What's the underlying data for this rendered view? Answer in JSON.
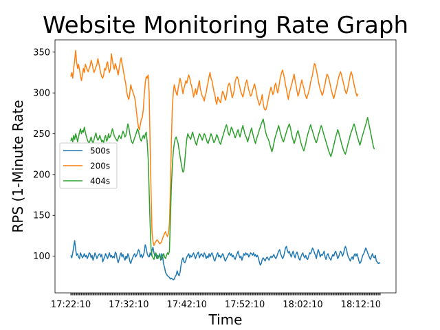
{
  "chart_data": {
    "type": "line",
    "title": "Website Monitoring Rate Graph",
    "xlabel": "Time",
    "ylabel": "RPS (1-Minute Rate",
    "x_start": "17:22:10",
    "x_step_seconds": 10,
    "x_tick_labels": [
      "17:22:10",
      "17:32:10",
      "17:42:10",
      "17:52:10",
      "18:02:10",
      "18:12:10"
    ],
    "y_ticks": [
      100,
      150,
      200,
      250,
      300,
      350
    ],
    "ylim": [
      55,
      365
    ],
    "legend_position": "center-left",
    "series": [
      {
        "name": "500s",
        "color": "#1f77b4",
        "values": [
          101,
          98,
          104,
          112,
          119,
          108,
          101,
          103,
          99,
          97,
          104,
          101,
          98,
          100,
          103,
          99,
          101,
          97,
          100,
          104,
          103,
          98,
          101,
          95,
          99,
          104,
          101,
          97,
          100,
          102,
          103,
          99,
          102,
          93,
          96,
          99,
          103,
          100,
          97,
          101,
          104,
          99,
          101,
          98,
          100,
          98,
          105,
          103,
          96,
          92,
          96,
          101,
          104,
          99,
          102,
          98,
          95,
          100,
          97,
          103,
          100,
          94,
          91,
          95,
          98,
          101,
          103,
          99,
          101,
          104,
          108,
          106,
          99,
          102,
          98,
          101,
          105,
          114,
          110,
          103,
          100,
          99,
          104,
          101,
          107,
          111,
          104,
          100,
          102,
          97,
          101,
          99,
          103,
          95,
          103,
          100,
          90,
          86,
          80,
          78,
          76,
          75,
          74,
          72,
          73,
          72,
          71,
          72,
          75,
          77,
          82,
          78,
          76,
          80,
          89,
          95,
          98,
          93,
          92,
          95,
          99,
          101,
          103,
          98,
          101,
          99,
          102,
          104,
          100,
          97,
          101,
          103,
          105,
          98,
          101,
          103,
          101,
          99,
          104,
          102,
          97,
          100,
          98,
          103,
          99,
          102,
          104,
          101,
          96,
          94,
          98,
          102,
          104,
          99,
          101,
          98,
          100,
          103,
          101,
          96,
          94,
          97,
          99,
          102,
          104,
          101,
          103,
          99,
          101,
          98,
          96,
          100,
          103,
          106,
          101,
          98,
          100,
          95,
          99,
          103,
          101,
          104,
          102,
          103,
          99,
          101,
          104,
          103,
          101,
          104,
          100,
          102,
          99,
          101,
          98,
          93,
          89,
          91,
          96,
          98,
          96,
          94,
          97,
          99,
          97,
          95,
          98,
          100,
          98,
          100,
          102,
          99,
          97,
          99,
          103,
          106,
          108,
          103,
          100,
          97,
          99,
          104,
          110,
          112,
          107,
          104,
          106,
          102,
          99,
          103,
          106,
          101,
          98,
          103,
          105,
          101,
          97,
          95,
          99,
          102,
          104,
          100,
          98,
          101,
          97,
          96,
          100,
          104,
          103,
          106,
          110,
          108,
          104,
          101,
          97,
          104,
          108,
          104,
          99,
          102,
          101,
          103,
          106,
          99,
          96,
          101,
          103,
          99,
          97,
          95,
          99,
          102,
          100,
          104,
          106,
          102,
          97,
          99,
          103,
          106,
          104,
          100,
          103,
          108,
          112,
          109,
          103,
          99,
          97,
          94,
          97,
          99,
          96,
          101,
          103,
          100,
          103,
          99,
          94,
          91,
          93,
          97,
          101,
          103,
          106,
          110,
          108,
          104,
          101,
          98,
          96,
          100,
          103,
          99,
          98,
          101,
          94,
          93,
          91,
          92,
          91
        ]
      },
      {
        "name": "200s",
        "color": "#ff7f0e",
        "values": [
          320,
          325,
          318,
          330,
          340,
          352,
          338,
          330,
          335,
          328,
          321,
          315,
          322,
          330,
          325,
          335,
          332,
          328,
          326,
          330,
          333,
          340,
          336,
          330,
          325,
          328,
          332,
          335,
          342,
          336,
          330,
          324,
          320,
          318,
          322,
          330,
          328,
          335,
          338,
          330,
          325,
          330,
          348,
          340,
          333,
          329,
          336,
          332,
          327,
          322,
          330,
          338,
          343,
          336,
          330,
          323,
          316,
          310,
          300,
          295,
          292,
          300,
          310,
          305,
          302,
          298,
          295,
          287,
          276,
          266,
          258,
          255,
          262,
          268,
          270,
          280,
          298,
          312,
          320,
          318,
          322,
          300,
          240,
          180,
          130,
          118,
          113,
          116,
          118,
          120,
          119,
          117,
          115,
          116,
          118,
          122,
          125,
          128,
          130,
          126,
          124,
          128,
          140,
          180,
          240,
          282,
          300,
          310,
          305,
          300,
          297,
          305,
          312,
          318,
          313,
          306,
          299,
          305,
          310,
          315,
          312,
          318,
          322,
          318,
          312,
          308,
          302,
          295,
          300,
          305,
          298,
          302,
          310,
          315,
          305,
          300,
          296,
          294,
          290,
          297,
          300,
          308,
          313,
          320,
          325,
          318,
          315,
          308,
          302,
          298,
          290,
          286,
          295,
          292,
          290,
          288,
          296,
          302,
          300,
          295,
          291,
          296,
          305,
          310,
          312,
          308,
          300,
          294,
          298,
          303,
          314,
          318,
          320,
          317,
          311,
          306,
          301,
          298,
          295,
          300,
          307,
          312,
          316,
          310,
          304,
          300,
          296,
          298,
          303,
          307,
          311,
          306,
          300,
          293,
          290,
          285,
          288,
          292,
          298,
          287,
          281,
          279,
          280,
          285,
          291,
          297,
          302,
          307,
          303,
          298,
          301,
          309,
          312,
          305,
          300,
          306,
          314,
          320,
          325,
          328,
          323,
          318,
          310,
          305,
          298,
          292,
          300,
          304,
          309,
          313,
          318,
          323,
          315,
          309,
          302,
          296,
          300,
          306,
          311,
          316,
          310,
          306,
          300,
          296,
          293,
          297,
          301,
          306,
          313,
          318,
          322,
          330,
          336,
          334,
          328,
          322,
          315,
          309,
          304,
          301,
          297,
          300,
          306,
          311,
          318,
          323,
          321,
          317,
          312,
          306,
          301,
          297,
          293,
          298,
          303,
          308,
          314,
          319,
          323,
          326,
          322,
          317,
          312,
          307,
          302,
          299,
          303,
          309,
          315,
          322,
          326,
          322,
          316,
          310,
          305,
          300,
          296,
          299
        ]
      },
      {
        "name": "404s",
        "color": "#2ca02c",
        "values": [
          241,
          245,
          240,
          248,
          243,
          250,
          246,
          240,
          246,
          252,
          256,
          250,
          254,
          252,
          258,
          252,
          247,
          243,
          240,
          238,
          242,
          246,
          241,
          238,
          243,
          247,
          251,
          245,
          242,
          244,
          248,
          244,
          240,
          242,
          239,
          245,
          248,
          241,
          243,
          250,
          245,
          247,
          251,
          256,
          252,
          247,
          245,
          243,
          241,
          244,
          248,
          246,
          244,
          249,
          253,
          250,
          246,
          248,
          255,
          262,
          258,
          250,
          244,
          240,
          238,
          241,
          245,
          248,
          252,
          256,
          253,
          247,
          243,
          241,
          245,
          248,
          244,
          249,
          252,
          240,
          220,
          180,
          140,
          110,
          100,
          98,
          96,
          101,
          104,
          100,
          97,
          99,
          102,
          98,
          96,
          100,
          103,
          99,
          97,
          101,
          104,
          102,
          106,
          145,
          185,
          210,
          228,
          238,
          244,
          246,
          242,
          238,
          230,
          222,
          215,
          208,
          203,
          205,
          218,
          232,
          244,
          250,
          247,
          245,
          243,
          248,
          252,
          247,
          243,
          239,
          236,
          241,
          246,
          250,
          248,
          245,
          242,
          246,
          250,
          248,
          244,
          240,
          238,
          242,
          246,
          250,
          247,
          243,
          239,
          241,
          245,
          249,
          246,
          242,
          239,
          237,
          242,
          246,
          250,
          254,
          258,
          261,
          256,
          250,
          248,
          252,
          258,
          256,
          252,
          249,
          245,
          248,
          252,
          255,
          250,
          246,
          251,
          256,
          260,
          255,
          250,
          247,
          244,
          240,
          245,
          249,
          253,
          257,
          251,
          246,
          242,
          238,
          243,
          247,
          250,
          255,
          258,
          262,
          265,
          268,
          262,
          255,
          250,
          246,
          244,
          241,
          236,
          232,
          228,
          232,
          238,
          244,
          248,
          252,
          256,
          260,
          255,
          250,
          246,
          242,
          240,
          244,
          248,
          252,
          256,
          259,
          262,
          258,
          252,
          246,
          242,
          238,
          242,
          246,
          251,
          254,
          249,
          244,
          239,
          235,
          232,
          229,
          233,
          238,
          244,
          249,
          253,
          257,
          261,
          257,
          253,
          249,
          245,
          241,
          239,
          243,
          248,
          252,
          256,
          260,
          257,
          252,
          248,
          244,
          240,
          236,
          232,
          228,
          225,
          222,
          226,
          231,
          236,
          241,
          246,
          250,
          255,
          252,
          247,
          243,
          238,
          234,
          230,
          227,
          225,
          229,
          234,
          239,
          243,
          248,
          252,
          255,
          259,
          262,
          258,
          253,
          248,
          244,
          240,
          236,
          240,
          245,
          249,
          253,
          257,
          261,
          265,
          270,
          264,
          258,
          252,
          246,
          240,
          234,
          231
        ]
      }
    ]
  }
}
